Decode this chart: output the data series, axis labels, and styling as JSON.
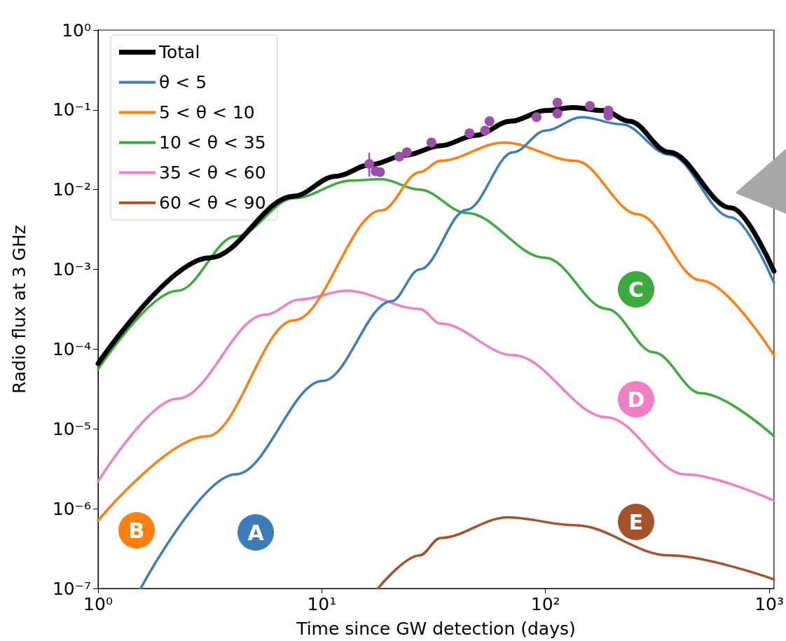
{
  "chart_data": {
    "type": "line",
    "xlabel": "Time since GW detection (days)",
    "ylabel": "Radio flux at 3 GHz",
    "log": "xy",
    "grid": false,
    "legend": "top left",
    "line_style": "solid",
    "xlim": [
      1,
      1050
    ],
    "xticks": [
      {
        "value": 1,
        "label": "10⁰"
      },
      {
        "value": 10,
        "label": "10¹"
      },
      {
        "value": 100,
        "label": "10²"
      },
      {
        "value": 1000,
        "label": "10³"
      }
    ],
    "ylim": [
      1e-07,
      1
    ],
    "yticks": [
      {
        "value": 1e-07,
        "label": "10⁻⁷"
      },
      {
        "value": 1e-06,
        "label": "10⁻⁶"
      },
      {
        "value": 1e-05,
        "label": "10⁻⁵"
      },
      {
        "value": 0.0001,
        "label": "10⁻⁴"
      },
      {
        "value": 0.001,
        "label": "10⁻³"
      },
      {
        "value": 0.01,
        "label": "10⁻²"
      },
      {
        "value": 0.1,
        "label": "10⁻¹"
      },
      {
        "value": 1,
        "label": "10⁰"
      }
    ],
    "series": [
      {
        "name": "Total",
        "color": "#000000",
        "x": [
          1,
          3.16,
          7.5,
          11.5,
          16.6,
          23.7,
          33.9,
          48.7,
          69.8,
          100,
          133,
          182,
          237,
          357,
          676,
          1050
        ],
        "values": [
          6.6e-05,
          0.0014,
          0.0083,
          0.0147,
          0.0206,
          0.027,
          0.0355,
          0.048,
          0.072,
          0.098,
          0.107,
          0.098,
          0.072,
          0.0295,
          0.0059,
          0.00095
        ]
      },
      {
        "name": "θ < 5",
        "color": "#3b7dbb",
        "x": [
          1.55,
          4.13,
          10.1,
          20.5,
          27.4,
          44.4,
          71.8,
          100,
          145,
          219,
          357,
          676,
          1050
        ],
        "values": [
          1e-07,
          2.7e-06,
          4e-05,
          0.0004,
          0.001,
          0.0056,
          0.0295,
          0.055,
          0.081,
          0.066,
          0.0275,
          0.0045,
          0.00068
        ]
      },
      {
        "name": "5 < θ < 10",
        "color": "#ff7f0e",
        "x": [
          1,
          3.07,
          7.5,
          18.5,
          27.4,
          33.9,
          65.2,
          136,
          259,
          494,
          1050
        ],
        "values": [
          7.1e-07,
          8.1e-06,
          0.00023,
          0.0055,
          0.0166,
          0.023,
          0.039,
          0.023,
          0.0049,
          0.00073,
          8.4e-05
        ]
      },
      {
        "name": "10 < θ < 35",
        "color": "#3daa3d",
        "x": [
          1,
          2.27,
          4.13,
          7.5,
          13.6,
          18.4,
          27.4,
          44.4,
          100,
          188,
          305,
          494,
          1050
        ],
        "values": [
          5.6e-05,
          0.00054,
          0.0026,
          0.0078,
          0.013,
          0.0135,
          0.01,
          0.0051,
          0.0014,
          0.00032,
          9.1e-05,
          2.8e-05,
          8.1e-06
        ]
      },
      {
        "name": "35 < θ < 60",
        "color": "#f07fc4",
        "x": [
          1,
          2.27,
          5.58,
          8,
          12.9,
          27.4,
          33.9,
          71.8,
          188,
          419,
          1050
        ],
        "values": [
          2.2e-06,
          2.4e-05,
          0.00027,
          0.00042,
          0.00054,
          0.00032,
          0.00021,
          8.4e-05,
          1.4e-05,
          2.7e-06,
          1.26e-06
        ]
      },
      {
        "name": "60 < θ < 90",
        "color": "#a5522a",
        "x": [
          17.8,
          27.4,
          33.9,
          67.6,
          136,
          357,
          1050
        ],
        "values": [
          1e-07,
          2.6e-07,
          4.3e-07,
          7.8e-07,
          6.2e-07,
          2.6e-07,
          1.3e-07
        ]
      },
      {
        "type": "scatter",
        "marker": "circle",
        "color": "#9b4fa8",
        "x": [
          16.3,
          17.4,
          18.2,
          22.2,
          24.0,
          30.9,
          45.7,
          53.7,
          56.2,
          91.2,
          113,
          113,
          158,
          191,
          191
        ],
        "values": [
          0.021,
          0.017,
          0.0166,
          0.026,
          0.0295,
          0.039,
          0.051,
          0.055,
          0.072,
          0.081,
          0.123,
          0.09,
          0.112,
          0.098,
          0.085
        ],
        "errors": [
          [
            0.0145,
            0.029
          ],
          null,
          null,
          null,
          null,
          null,
          null,
          null,
          null,
          null,
          null,
          null,
          null,
          null,
          null
        ]
      }
    ],
    "annotations": [
      "A",
      "B",
      "C",
      "D",
      "E"
    ]
  }
}
